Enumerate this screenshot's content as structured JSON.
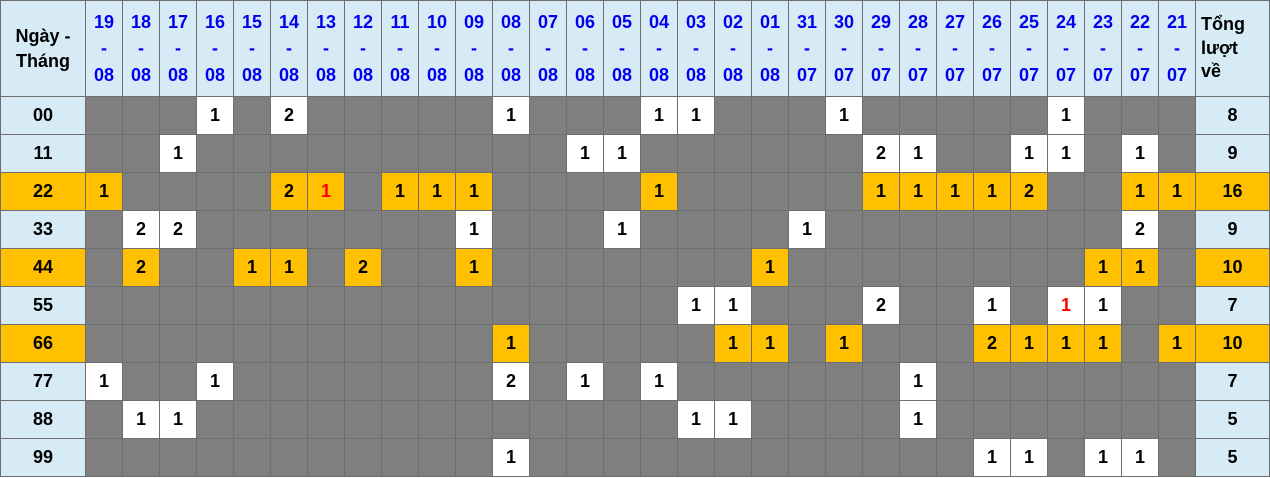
{
  "colors": {
    "header_bg": "#d7ebf7",
    "date_text_blue": "#0000ee",
    "empty_cell_gray": "#7f7f7f",
    "highlight_orange": "#ffc000",
    "filled_cell_white": "#ffffff",
    "red_value": "#ff0000",
    "grid_border": "#6e6e6e",
    "text_black": "#000000"
  },
  "chart_data": {
    "type": "table",
    "corner_header_lines": [
      "Ngày -",
      "Tháng"
    ],
    "total_header_lines": [
      "Tổng",
      "lượt",
      "về"
    ],
    "columns": [
      "19-08",
      "18-08",
      "17-08",
      "16-08",
      "15-08",
      "14-08",
      "13-08",
      "12-08",
      "11-08",
      "10-08",
      "09-08",
      "08-08",
      "07-08",
      "06-08",
      "05-08",
      "04-08",
      "03-08",
      "02-08",
      "01-08",
      "31-07",
      "30-07",
      "29-07",
      "28-07",
      "27-07",
      "26-07",
      "25-07",
      "24-07",
      "23-07",
      "22-07",
      "21-07"
    ],
    "rows": [
      {
        "label": "00",
        "highlighted": false,
        "total": "8",
        "cells": [
          "",
          "",
          "",
          "1",
          "",
          "2",
          "",
          "",
          "",
          "",
          "",
          "1",
          "",
          "",
          "",
          "1",
          "1",
          "",
          "",
          "",
          "1",
          "",
          "",
          "",
          "",
          "",
          "1",
          "",
          "",
          ""
        ],
        "red_cell_columns": []
      },
      {
        "label": "11",
        "highlighted": false,
        "total": "9",
        "cells": [
          "",
          "",
          "1",
          "",
          "",
          "",
          "",
          "",
          "",
          "",
          "",
          "",
          "",
          "1",
          "1",
          "",
          "",
          "",
          "",
          "",
          "",
          "2",
          "1",
          "",
          "",
          "1",
          "1",
          "",
          "1",
          ""
        ],
        "red_cell_columns": []
      },
      {
        "label": "22",
        "highlighted": true,
        "total": "16",
        "cells": [
          "1",
          "",
          "",
          "",
          "",
          "2",
          "1",
          "",
          "1",
          "1",
          "1",
          "",
          "",
          "",
          "",
          "1",
          "",
          "",
          "",
          "",
          "",
          "1",
          "1",
          "1",
          "1",
          "2",
          "",
          "",
          "1",
          "1"
        ],
        "red_cell_columns": [
          6
        ]
      },
      {
        "label": "33",
        "highlighted": false,
        "total": "9",
        "cells": [
          "",
          "2",
          "2",
          "",
          "",
          "",
          "",
          "",
          "",
          "",
          "1",
          "",
          "",
          "",
          "1",
          "",
          "",
          "",
          "",
          "1",
          "",
          "",
          "",
          "",
          "",
          "",
          "",
          "",
          "2",
          ""
        ],
        "red_cell_columns": []
      },
      {
        "label": "44",
        "highlighted": true,
        "total": "10",
        "cells": [
          "",
          "2",
          "",
          "",
          "1",
          "1",
          "",
          "2",
          "",
          "",
          "1",
          "",
          "",
          "",
          "",
          "",
          "",
          "",
          "1",
          "",
          "",
          "",
          "",
          "",
          "",
          "",
          "",
          "1",
          "1",
          ""
        ],
        "red_cell_columns": []
      },
      {
        "label": "55",
        "highlighted": false,
        "total": "7",
        "cells": [
          "",
          "",
          "",
          "",
          "",
          "",
          "",
          "",
          "",
          "",
          "",
          "",
          "",
          "",
          "",
          "",
          "1",
          "1",
          "",
          "",
          "",
          "2",
          "",
          "",
          "1",
          "",
          "1",
          "1",
          "",
          ""
        ],
        "red_cell_columns": [
          26
        ]
      },
      {
        "label": "66",
        "highlighted": true,
        "total": "10",
        "cells": [
          "",
          "",
          "",
          "",
          "",
          "",
          "",
          "",
          "",
          "",
          "",
          "1",
          "",
          "",
          "",
          "",
          "",
          "1",
          "1",
          "",
          "1",
          "",
          "",
          "",
          "2",
          "1",
          "1",
          "1",
          "",
          "1"
        ],
        "red_cell_columns": []
      },
      {
        "label": "77",
        "highlighted": false,
        "total": "7",
        "cells": [
          "1",
          "",
          "",
          "1",
          "",
          "",
          "",
          "",
          "",
          "",
          "",
          "2",
          "",
          "1",
          "",
          "1",
          "",
          "",
          "",
          "",
          "",
          "",
          "1",
          "",
          "",
          "",
          "",
          "",
          "",
          ""
        ],
        "red_cell_columns": []
      },
      {
        "label": "88",
        "highlighted": false,
        "total": "5",
        "cells": [
          "",
          "1",
          "1",
          "",
          "",
          "",
          "",
          "",
          "",
          "",
          "",
          "",
          "",
          "",
          "",
          "",
          "1",
          "1",
          "",
          "",
          "",
          "",
          "1",
          "",
          "",
          "",
          "",
          "",
          "",
          ""
        ],
        "red_cell_columns": []
      },
      {
        "label": "99",
        "highlighted": false,
        "total": "5",
        "cells": [
          "",
          "",
          "",
          "",
          "",
          "",
          "",
          "",
          "",
          "",
          "",
          "1",
          "",
          "",
          "",
          "",
          "",
          "",
          "",
          "",
          "",
          "",
          "",
          "",
          "1",
          "1",
          "",
          "1",
          "1",
          ""
        ],
        "red_cell_columns": []
      }
    ]
  }
}
